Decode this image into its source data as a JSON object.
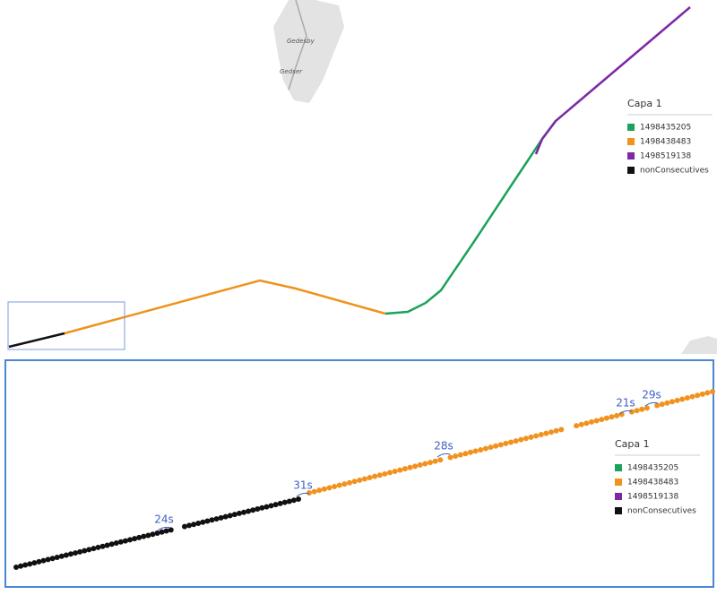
{
  "map_labels": [
    "Gedesby",
    "Gedser"
  ],
  "legend": {
    "title": "Capa 1",
    "items": [
      {
        "label": "1498435205",
        "color": "#1aa35a"
      },
      {
        "label": "1498438483",
        "color": "#f0921d"
      },
      {
        "label": "1498519138",
        "color": "#7b2aa6"
      },
      {
        "label": "nonConsecutives",
        "color": "#111111"
      }
    ]
  },
  "gap_annotations": [
    "24s",
    "31s",
    "28s",
    "21s",
    "29s"
  ]
}
